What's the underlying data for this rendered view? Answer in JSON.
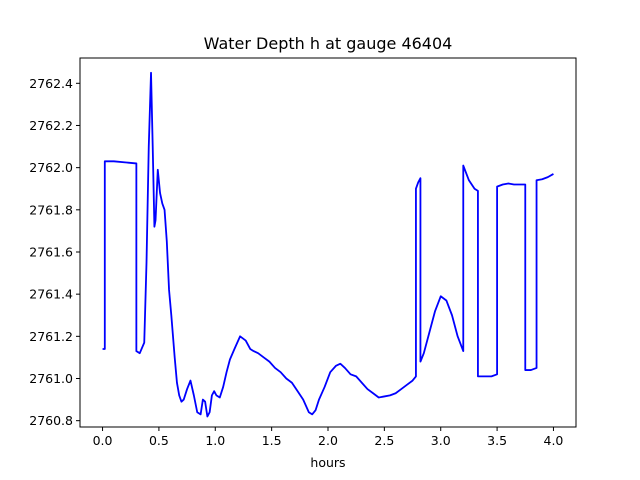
{
  "chart_data": {
    "type": "line",
    "title": "Water Depth h at gauge 46404",
    "xlabel": "hours",
    "ylabel": "",
    "xlim": [
      -0.2,
      4.2
    ],
    "ylim": [
      2760.77,
      2762.52
    ],
    "xticks": [
      0.0,
      0.5,
      1.0,
      1.5,
      2.0,
      2.5,
      3.0,
      3.5,
      4.0
    ],
    "xtick_labels": [
      "0.0",
      "0.5",
      "1.0",
      "1.5",
      "2.0",
      "2.5",
      "3.0",
      "3.5",
      "4.0"
    ],
    "yticks": [
      2760.8,
      2761.0,
      2761.2,
      2761.4,
      2761.6,
      2761.8,
      2762.0,
      2762.2,
      2762.4
    ],
    "ytick_labels": [
      "2760.8",
      "2761.0",
      "2761.2",
      "2761.4",
      "2761.6",
      "2761.8",
      "2762.0",
      "2762.2",
      "2762.4"
    ],
    "grid": false,
    "series_color": "#0000ff",
    "series": [
      {
        "x": [
          0.0,
          0.02,
          0.02,
          0.1,
          0.2,
          0.3,
          0.3,
          0.33,
          0.37,
          0.39,
          0.41,
          0.43,
          0.445,
          0.46,
          0.47,
          0.49,
          0.51,
          0.53,
          0.55,
          0.57,
          0.59,
          0.61,
          0.64,
          0.66,
          0.68,
          0.7,
          0.72,
          0.75,
          0.78,
          0.81,
          0.84,
          0.87,
          0.89,
          0.91,
          0.93,
          0.95,
          0.97,
          0.99,
          1.01,
          1.04,
          1.07,
          1.1,
          1.13,
          1.17,
          1.22,
          1.27,
          1.31,
          1.34,
          1.38,
          1.43,
          1.48,
          1.53,
          1.58,
          1.63,
          1.68,
          1.73,
          1.78,
          1.83,
          1.86,
          1.89,
          1.92,
          1.97,
          2.02,
          2.07,
          2.11,
          2.15,
          2.2,
          2.25,
          2.3,
          2.35,
          2.4,
          2.45,
          2.5,
          2.55,
          2.6,
          2.65,
          2.7,
          2.75,
          2.78,
          2.78,
          2.8,
          2.82,
          2.82,
          2.85,
          2.9,
          2.95,
          3.0,
          3.05,
          3.1,
          3.15,
          3.2,
          3.2,
          3.25,
          3.3,
          3.33,
          3.33,
          3.35,
          3.4,
          3.45,
          3.5,
          3.5,
          3.55,
          3.6,
          3.65,
          3.7,
          3.75,
          3.75,
          3.8,
          3.85,
          3.85,
          3.9,
          3.95,
          4.0
        ],
        "y": [
          2761.14,
          2761.14,
          2762.03,
          2762.03,
          2762.025,
          2762.02,
          2761.13,
          2761.12,
          2761.17,
          2761.55,
          2762.1,
          2762.45,
          2762.1,
          2761.72,
          2761.75,
          2761.99,
          2761.88,
          2761.83,
          2761.8,
          2761.65,
          2761.42,
          2761.3,
          2761.1,
          2760.98,
          2760.92,
          2760.89,
          2760.9,
          2760.95,
          2760.99,
          2760.92,
          2760.84,
          2760.83,
          2760.9,
          2760.89,
          2760.82,
          2760.84,
          2760.92,
          2760.94,
          2760.92,
          2760.91,
          2760.96,
          2761.03,
          2761.09,
          2761.14,
          2761.2,
          2761.18,
          2761.14,
          2761.13,
          2761.12,
          2761.1,
          2761.08,
          2761.05,
          2761.03,
          2761.0,
          2760.98,
          2760.94,
          2760.9,
          2760.84,
          2760.83,
          2760.85,
          2760.9,
          2760.96,
          2761.03,
          2761.06,
          2761.07,
          2761.05,
          2761.02,
          2761.01,
          2760.98,
          2760.95,
          2760.93,
          2760.91,
          2760.915,
          2760.92,
          2760.93,
          2760.95,
          2760.97,
          2760.99,
          2761.01,
          2761.9,
          2761.93,
          2761.95,
          2761.08,
          2761.12,
          2761.22,
          2761.32,
          2761.39,
          2761.37,
          2761.3,
          2761.2,
          2761.13,
          2762.01,
          2761.94,
          2761.9,
          2761.89,
          2761.01,
          2761.01,
          2761.01,
          2761.01,
          2761.02,
          2761.91,
          2761.92,
          2761.925,
          2761.92,
          2761.92,
          2761.92,
          2761.04,
          2761.04,
          2761.05,
          2761.94,
          2761.945,
          2761.955,
          2761.97
        ]
      }
    ]
  }
}
